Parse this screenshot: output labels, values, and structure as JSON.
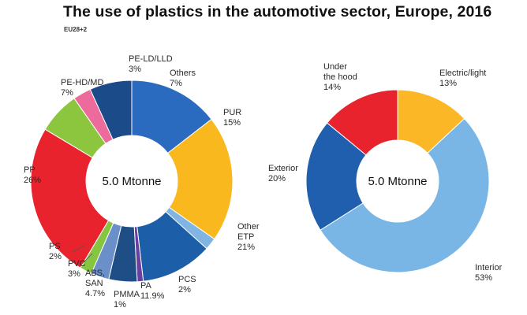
{
  "title": "The use of plastics in the automotive sector, Europe, 2016",
  "subtitle": "EU28+2",
  "chart_data": [
    {
      "type": "pie",
      "variant": "donut",
      "center_label": "5.0 Mtonne",
      "slices": [
        {
          "label": "PUR",
          "value_label": "15%",
          "value": 15,
          "color": "#2a6bbf"
        },
        {
          "label": "Other ETP",
          "value_label": "21%",
          "value": 21,
          "color": "#f9b81e"
        },
        {
          "label": "PCS",
          "value_label": "2%",
          "value": 2,
          "color": "#7fb4e3"
        },
        {
          "label": "PA",
          "value_label": "11.9%",
          "value": 11.9,
          "color": "#1d5ea8"
        },
        {
          "label": "PMMA",
          "value_label": "1%",
          "value": 1,
          "color": "#6a3fa0"
        },
        {
          "label": "ABS, SAN",
          "value_label": "4.7%",
          "value": 4.7,
          "color": "#1f4d86"
        },
        {
          "label": "PVC",
          "value_label": "3%",
          "value": 3,
          "color": "#6b8fc9"
        },
        {
          "label": "PS",
          "value_label": "2%",
          "value": 2,
          "color": "#86c540"
        },
        {
          "label": "PP",
          "value_label": "26%",
          "value": 26,
          "color": "#e8232e"
        },
        {
          "label": "PE-HD/MD",
          "value_label": "7%",
          "value": 7,
          "color": "#8cc63f"
        },
        {
          "label": "PE-LD/LLD",
          "value_label": "3%",
          "value": 3,
          "color": "#ec6a9c"
        },
        {
          "label": "Others",
          "value_label": "7%",
          "value": 7,
          "color": "#1c4b8a"
        }
      ]
    },
    {
      "type": "pie",
      "variant": "donut",
      "center_label": "5.0 Mtonne",
      "slices": [
        {
          "label": "Electric/light",
          "value_label": "13%",
          "value": 13,
          "color": "#fbb725"
        },
        {
          "label": "Interior",
          "value_label": "53%",
          "value": 53,
          "color": "#79b6e6"
        },
        {
          "label": "Exterior",
          "value_label": "20%",
          "value": 20,
          "color": "#1f5fae"
        },
        {
          "label": "Under the hood",
          "value_label": "14%",
          "value": 14,
          "color": "#e8232e"
        }
      ]
    }
  ]
}
